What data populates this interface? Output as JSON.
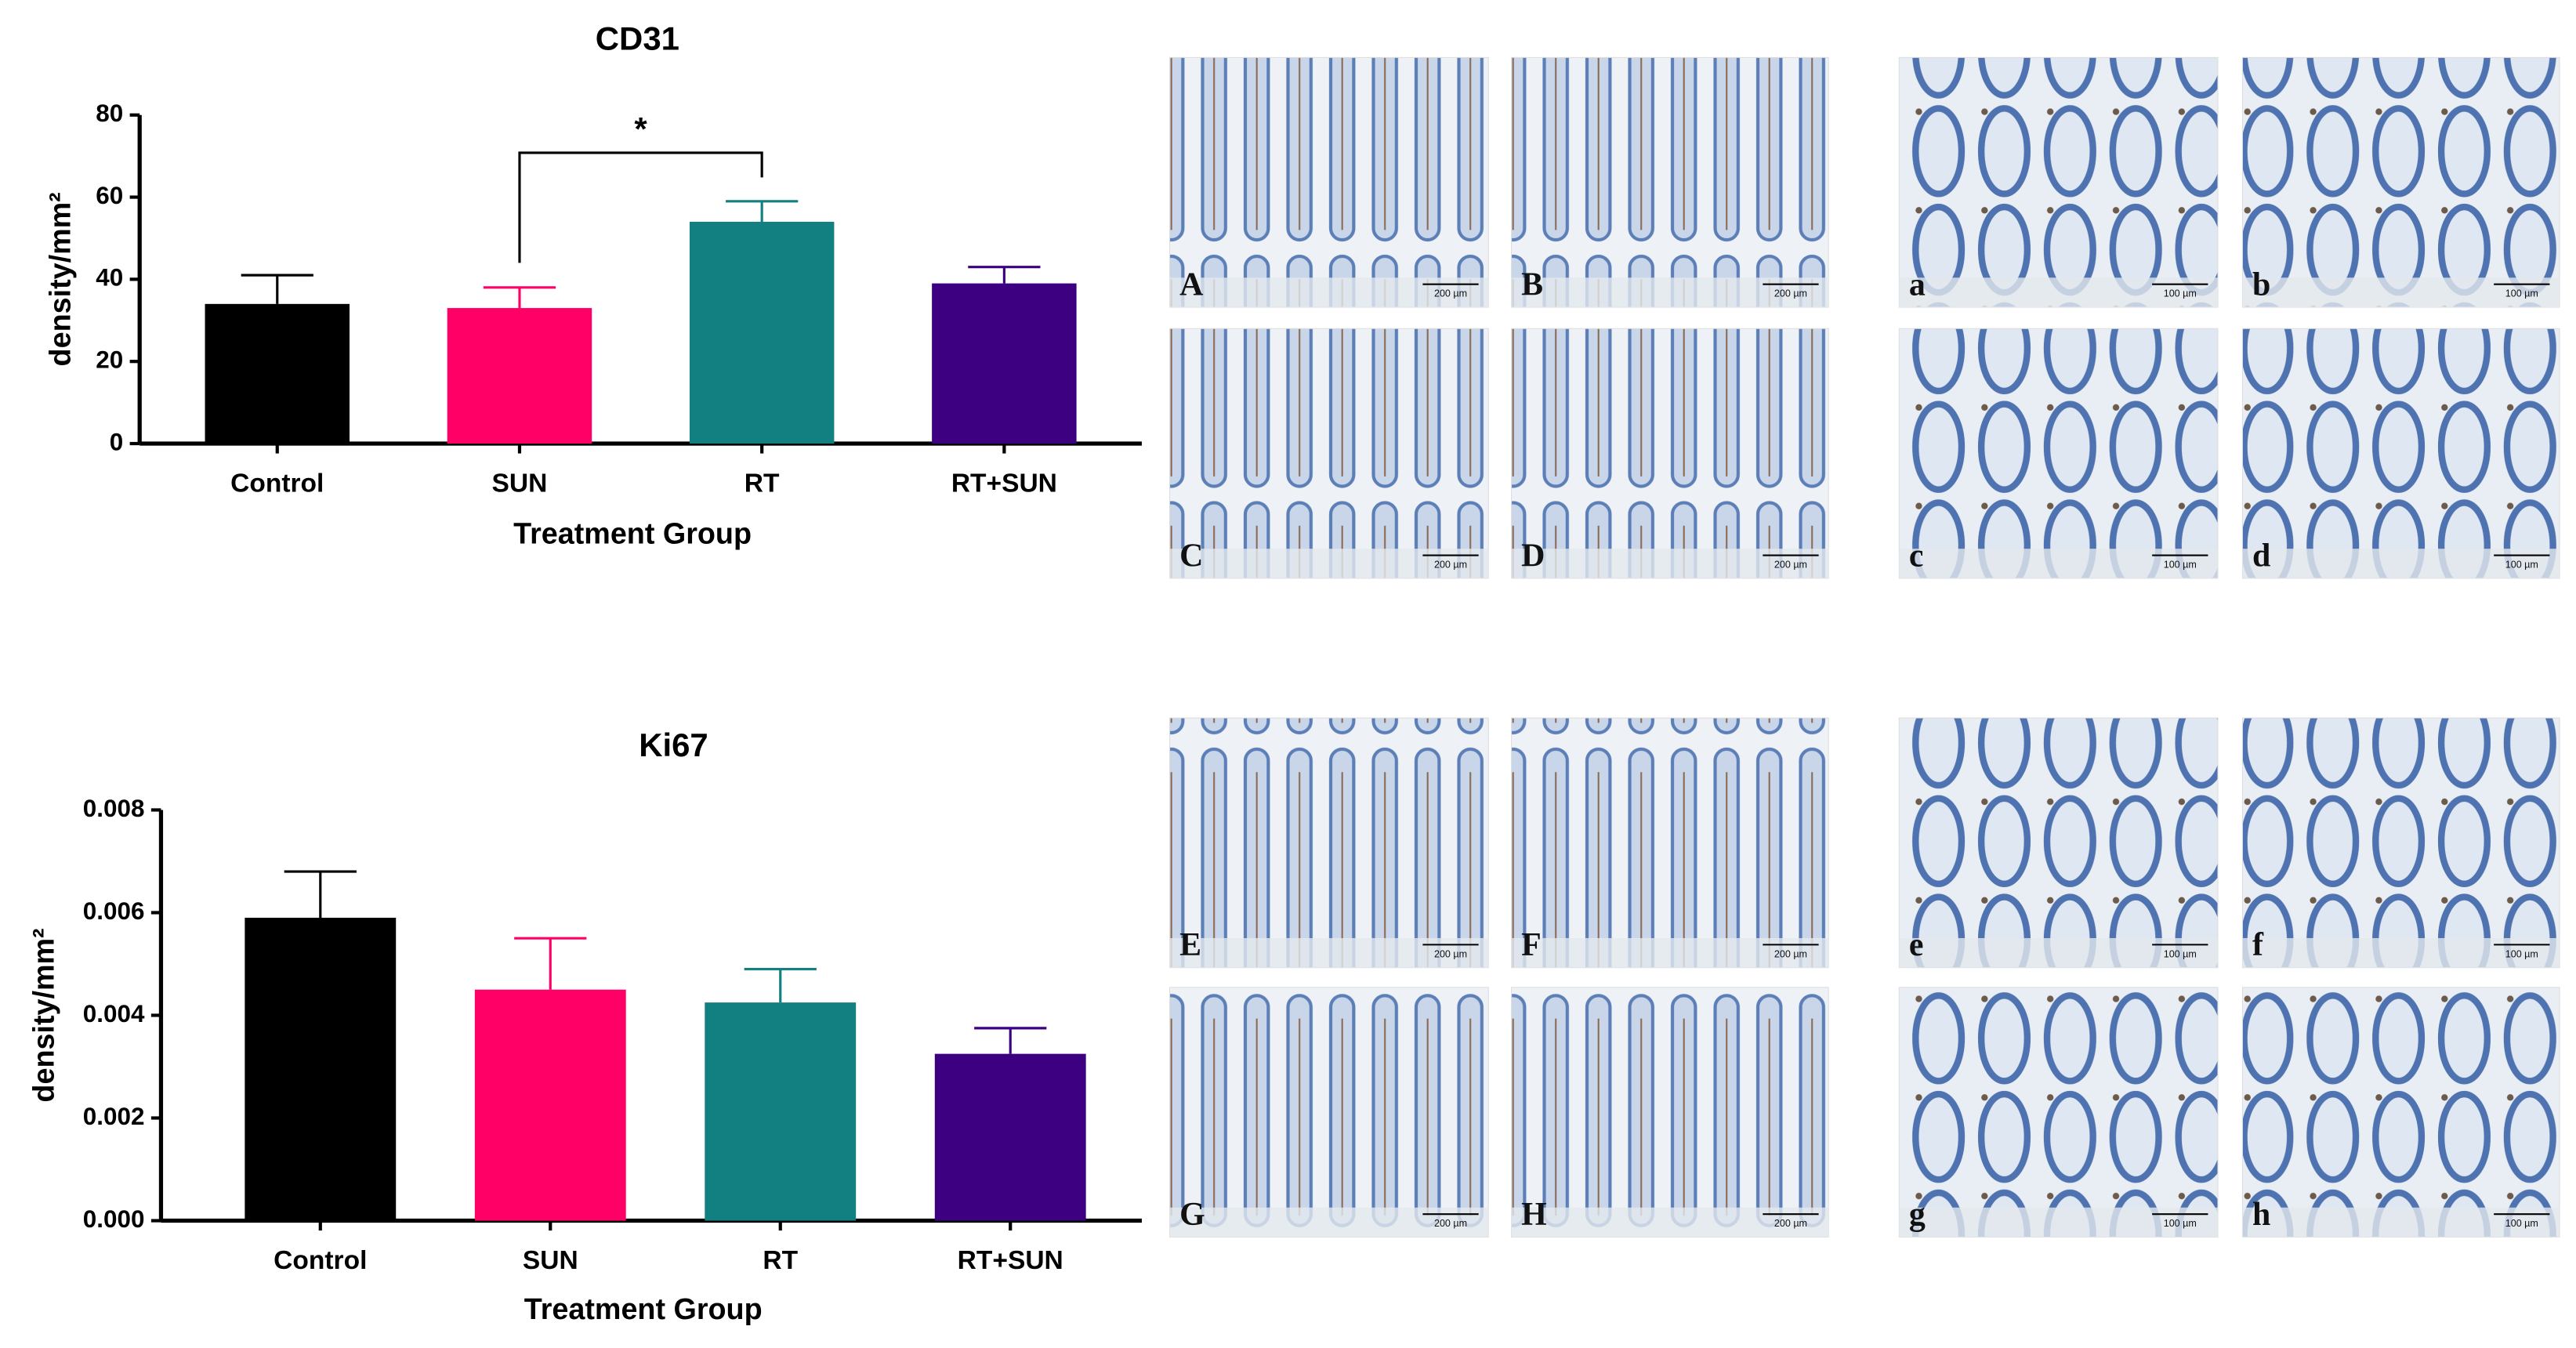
{
  "chart_data": [
    {
      "type": "bar",
      "title": "CD31",
      "x_label": "Treatment Group",
      "y_label": "density/mm²",
      "categories": [
        "Control",
        "SUN",
        "RT",
        "RT+SUN"
      ],
      "values": [
        34,
        33,
        54,
        39
      ],
      "errors": [
        7,
        5,
        5,
        4
      ],
      "colors": [
        "#000000",
        "#ff0066",
        "#128080",
        "#3d0080"
      ],
      "ylim": [
        0,
        80
      ],
      "yticks": [
        0,
        20,
        40,
        60,
        80
      ],
      "grid": false,
      "significance": "*"
    },
    {
      "type": "bar",
      "title": "Ki67",
      "x_label": "Treatment Group",
      "y_label": "density/mm²",
      "categories": [
        "Control",
        "SUN",
        "RT",
        "RT+SUN"
      ],
      "values": [
        0.0059,
        0.0045,
        0.00425,
        0.00325
      ],
      "errors": [
        0.0009,
        0.001,
        0.00065,
        0.0005
      ],
      "colors": [
        "#000000",
        "#ff0066",
        "#128080",
        "#3d0080"
      ],
      "ylim": [
        0,
        0.008
      ],
      "yticks": [
        {
          "value": 0,
          "label": "0.000"
        },
        0.002,
        0.004,
        0.006,
        0.008
      ],
      "grid": false
    }
  ],
  "micrographs": {
    "panels": [
      {
        "label": "A",
        "scale": "200 µm"
      },
      {
        "label": "B",
        "scale": "200 µm"
      },
      {
        "label": "a",
        "scale": "100 µm"
      },
      {
        "label": "b",
        "scale": "100 µm"
      },
      {
        "label": "C",
        "scale": "200 µm"
      },
      {
        "label": "D",
        "scale": "200 µm"
      },
      {
        "label": "c",
        "scale": "100 µm"
      },
      {
        "label": "d",
        "scale": "100 µm"
      },
      {
        "label": "E",
        "scale": "200 µm"
      },
      {
        "label": "F",
        "scale": "200 µm"
      },
      {
        "label": "e",
        "scale": "100 µm"
      },
      {
        "label": "f",
        "scale": "100 µm"
      },
      {
        "label": "G",
        "scale": "200 µm"
      },
      {
        "label": "H",
        "scale": "200 µm"
      },
      {
        "label": "g",
        "scale": "100 µm"
      },
      {
        "label": "h",
        "scale": "100 µm"
      }
    ]
  }
}
